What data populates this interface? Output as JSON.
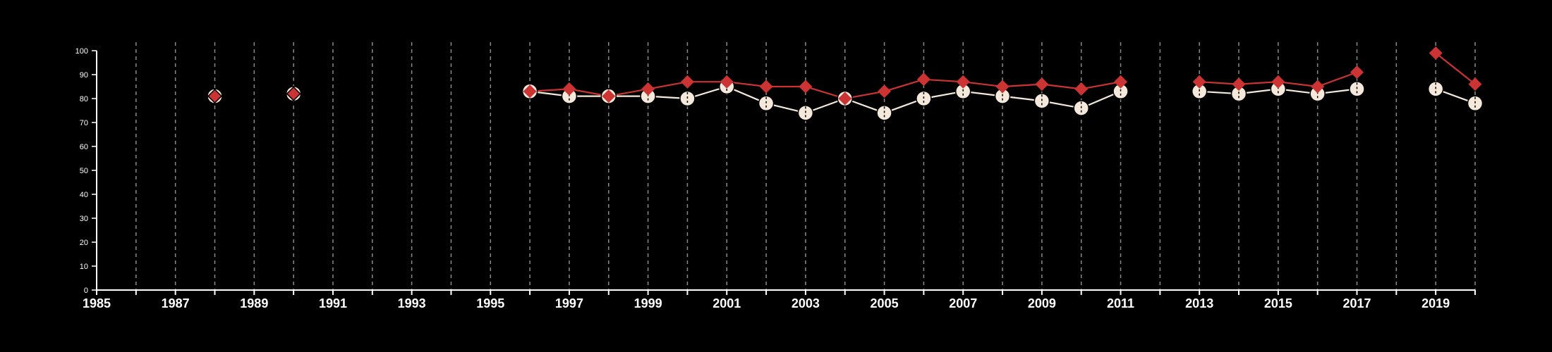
{
  "chart_data": {
    "type": "line",
    "title": "",
    "xlabel": "",
    "ylabel": "",
    "xlim": [
      1985,
      2020
    ],
    "ylim": [
      0,
      100
    ],
    "x_ticks": [
      1985,
      1987,
      1989,
      1991,
      1993,
      1995,
      1997,
      1999,
      2001,
      2003,
      2005,
      2007,
      2009,
      2011,
      2013,
      2015,
      2017,
      2019
    ],
    "y_ticks": [
      0,
      10,
      20,
      30,
      40,
      50,
      60,
      70,
      80,
      90,
      100
    ],
    "grid": "vertical-dashed-yearly",
    "legend": "none",
    "colors": {
      "background": "#000000",
      "axis": "#ffffff",
      "grid": "#8a8a8a"
    },
    "series": [
      {
        "marker": "circle",
        "color": "#f5e9dc",
        "points": [
          {
            "x": 1996,
            "y": 83
          },
          {
            "x": 1997,
            "y": 81
          },
          {
            "x": 1998,
            "y": 81
          },
          {
            "x": 1999,
            "y": 81
          },
          {
            "x": 2000,
            "y": 80
          },
          {
            "x": 2001,
            "y": 85
          },
          {
            "x": 2002,
            "y": 78
          },
          {
            "x": 2003,
            "y": 74
          },
          {
            "x": 2004,
            "y": 80
          },
          {
            "x": 2005,
            "y": 74
          },
          {
            "x": 2006,
            "y": 80
          },
          {
            "x": 2007,
            "y": 83
          },
          {
            "x": 2008,
            "y": 81
          },
          {
            "x": 2009,
            "y": 79
          },
          {
            "x": 2010,
            "y": 76
          },
          {
            "x": 2011,
            "y": 83
          },
          {
            "x": 2013,
            "y": 83
          },
          {
            "x": 2014,
            "y": 82
          },
          {
            "x": 2015,
            "y": 84
          },
          {
            "x": 2016,
            "y": 82
          },
          {
            "x": 2017,
            "y": 84
          },
          {
            "x": 2019,
            "y": 84
          },
          {
            "x": 2020,
            "y": 78
          }
        ],
        "isolated_points": [
          {
            "x": 1988,
            "y": 81
          },
          {
            "x": 1990,
            "y": 82
          }
        ]
      },
      {
        "marker": "diamond",
        "color": "#cc3333",
        "points": [
          {
            "x": 1996,
            "y": 83
          },
          {
            "x": 1997,
            "y": 84
          },
          {
            "x": 1998,
            "y": 81
          },
          {
            "x": 1999,
            "y": 84
          },
          {
            "x": 2000,
            "y": 87
          },
          {
            "x": 2001,
            "y": 87
          },
          {
            "x": 2002,
            "y": 85
          },
          {
            "x": 2003,
            "y": 85
          },
          {
            "x": 2004,
            "y": 80
          },
          {
            "x": 2005,
            "y": 83
          },
          {
            "x": 2006,
            "y": 88
          },
          {
            "x": 2007,
            "y": 87
          },
          {
            "x": 2008,
            "y": 85
          },
          {
            "x": 2009,
            "y": 86
          },
          {
            "x": 2010,
            "y": 84
          },
          {
            "x": 2011,
            "y": 87
          },
          {
            "x": 2013,
            "y": 87
          },
          {
            "x": 2014,
            "y": 86
          },
          {
            "x": 2015,
            "y": 87
          },
          {
            "x": 2016,
            "y": 85
          },
          {
            "x": 2017,
            "y": 91
          },
          {
            "x": 2019,
            "y": 99
          },
          {
            "x": 2020,
            "y": 86
          }
        ],
        "isolated_points": [
          {
            "x": 1988,
            "y": 81
          },
          {
            "x": 1990,
            "y": 82
          }
        ]
      }
    ]
  }
}
